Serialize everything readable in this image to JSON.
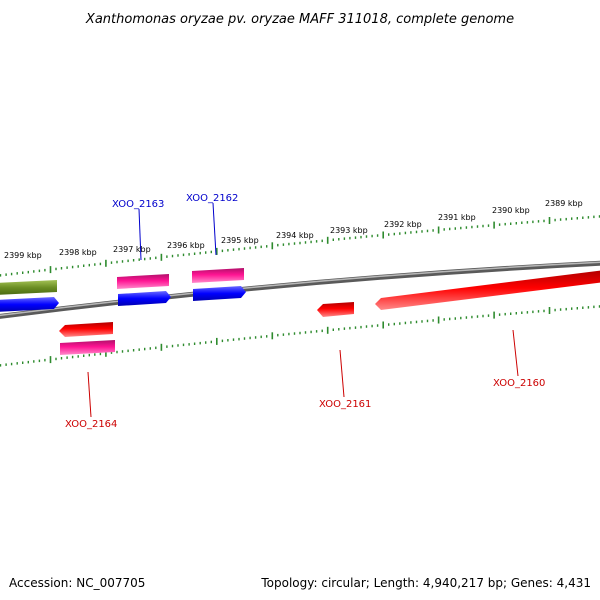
{
  "title": "Xanthomonas oryzae pv. oryzae MAFF 311018, complete genome",
  "footer": {
    "accession": "Accession: NC_007705",
    "summary": "Topology: circular; Length: 4,940,217 bp; Genes: 4,431"
  },
  "scale_labels": [
    "2399 kbp",
    "2398 kbp",
    "2397 kbp",
    "2396 kbp",
    "2395 kbp",
    "2394 kbp",
    "2393 kbp",
    "2392 kbp",
    "2391 kbp",
    "2390 kbp",
    "2389 kbp"
  ],
  "gene_labels": {
    "top": [
      "XOO_2163",
      "XOO_2162"
    ],
    "bottom": [
      "XOO_2164",
      "XOO_2161",
      "XOO_2160"
    ]
  },
  "colors": {
    "backbone": "#888888",
    "tick": "#2e8b2e",
    "olive": "#6b8e23",
    "blue": "#0000ff",
    "magenta": "#ff1493",
    "red": "#ff0000",
    "label_top": "#0000cc",
    "label_bottom": "#cc0000"
  }
}
